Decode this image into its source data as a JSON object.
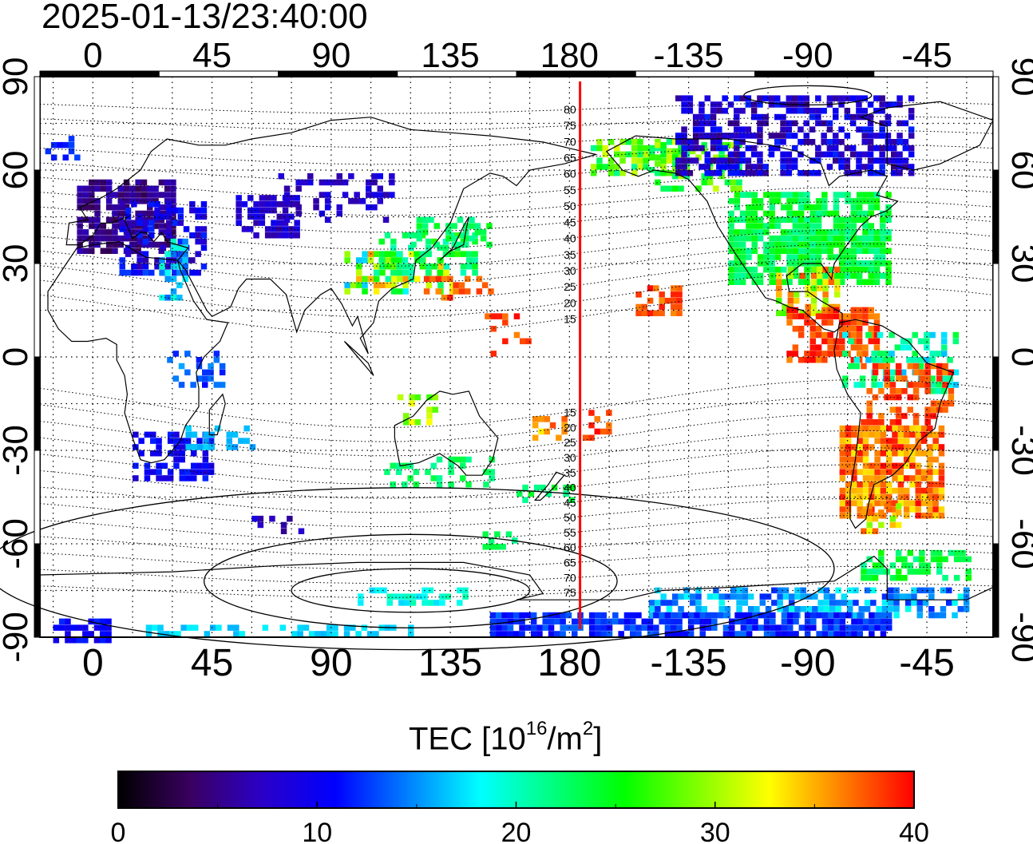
{
  "timestamp": "2025-01-13/23:40:00",
  "map": {
    "projection": "equirectangular",
    "center_longitude": 180,
    "lon_range": [
      -20,
      340
    ],
    "lat_range": [
      -90,
      90
    ],
    "x_tick_labels": [
      "0",
      "45",
      "90",
      "135",
      "180",
      "-135",
      "-90",
      "-45"
    ],
    "x_tick_lons": [
      0,
      45,
      90,
      135,
      180,
      225,
      270,
      315
    ],
    "y_tick_labels": [
      "90",
      "60",
      "30",
      "0",
      "-30",
      "-60",
      "-90"
    ],
    "y_tick_lats": [
      90,
      60,
      30,
      0,
      -30,
      -60,
      -90
    ],
    "grid": "dotted",
    "land_outline_color": "#000000",
    "meridian_marker": {
      "longitude": -176,
      "color": "#ff0000"
    },
    "magnetic_latitude_labels": [
      "80",
      "75",
      "70",
      "65",
      "60",
      "55",
      "50",
      "45",
      "40",
      "35",
      "30",
      "25",
      "20",
      "15",
      "15",
      "20",
      "25",
      "30",
      "35",
      "40",
      "45",
      "50",
      "55",
      "60",
      "65",
      "70",
      "75"
    ],
    "magnetic_latitude_values": [
      80,
      75,
      70,
      65,
      60,
      55,
      50,
      45,
      40,
      35,
      30,
      25,
      20,
      15,
      -15,
      -20,
      -25,
      -30,
      -35,
      -40,
      -45,
      -50,
      -55,
      -60,
      -65,
      -70,
      -75
    ]
  },
  "colorbar": {
    "title_prefix": "TEC  [10",
    "title_exp1": "16",
    "title_mid": "/m",
    "title_exp2": "2",
    "title_suffix": "]",
    "min": 0,
    "max": 40,
    "tick_labels": [
      "0",
      "10",
      "20",
      "30",
      "40"
    ],
    "colors": [
      "#000000",
      "#3a0060",
      "#2a00c8",
      "#0000ff",
      "#0080ff",
      "#00ffff",
      "#00ff80",
      "#00ff00",
      "#80ff00",
      "#ffff00",
      "#ff8000",
      "#ff0000"
    ]
  }
}
